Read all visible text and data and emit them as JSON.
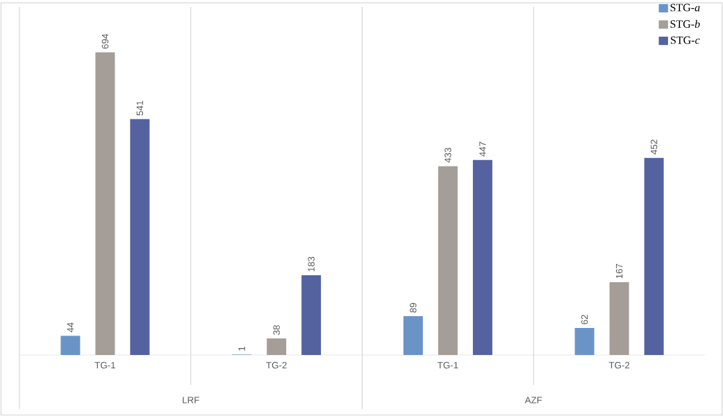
{
  "chart_data": {
    "type": "bar",
    "categories": [
      "TG-1",
      "TG-2",
      "TG-1",
      "TG-2"
    ],
    "series": [
      {
        "name": "STG-*a*",
        "color": "#6a94c8",
        "values": [
          44,
          1,
          89,
          62
        ]
      },
      {
        "name": "STG-*b*",
        "color": "#a59d98",
        "values": [
          694,
          38,
          433,
          167
        ]
      },
      {
        "name": "STG-*c*",
        "color": "#5462a0",
        "values": [
          541,
          183,
          447,
          452
        ]
      }
    ],
    "annotations": [
      "LRF",
      "AZF"
    ],
    "data_labels": true,
    "legend": "top right"
  }
}
